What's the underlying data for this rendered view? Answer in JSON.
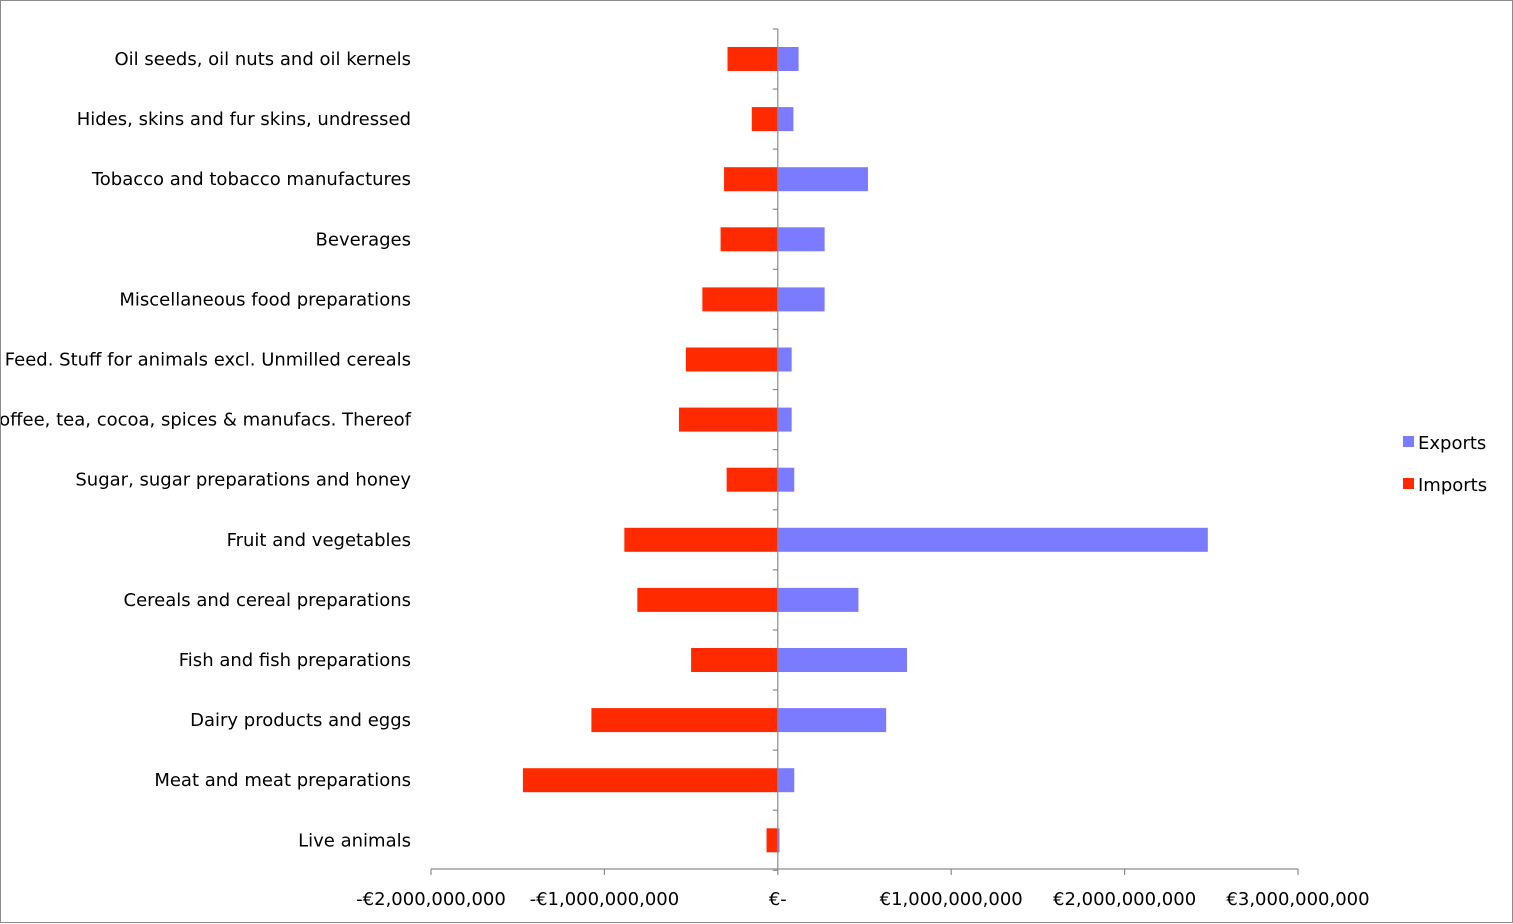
{
  "chart_data": {
    "type": "bar",
    "orientation": "horizontal",
    "categories": [
      "Live animals",
      "Meat and meat preparations",
      "Dairy products and eggs",
      "Fish and fish preparations",
      "Cereals and cereal preparations",
      "Fruit and vegetables",
      "Sugar, sugar preparations and honey",
      "Coffee, tea, cocoa, spices & manufacs. Thereof",
      "Feed. Stuff for animals excl. Unmilled cereals",
      "Miscellaneous food preparations",
      "Beverages",
      "Tobacco and tobacco manufactures",
      "Hides, skins and fur skins, undressed",
      "Oil seeds, oil nuts and oil kernels"
    ],
    "series": [
      {
        "name": "Exports",
        "color": "#7b7bff",
        "values": [
          10000000,
          95000000,
          625000000,
          745000000,
          465000000,
          2480000000,
          95000000,
          80000000,
          80000000,
          270000000,
          270000000,
          520000000,
          90000000,
          120000000
        ]
      },
      {
        "name": "Imports",
        "color": "#ff2a00",
        "values": [
          -65000000,
          -1470000000,
          -1075000000,
          -500000000,
          -810000000,
          -885000000,
          -295000000,
          -570000000,
          -530000000,
          -435000000,
          -330000000,
          -310000000,
          -150000000,
          -290000000
        ]
      }
    ],
    "xlim": [
      -2000000000,
      3000000000
    ],
    "xticks": [
      -2000000000,
      -1000000000,
      0,
      1000000000,
      2000000000,
      3000000000
    ],
    "xtick_labels": [
      "-€2,000,000,000",
      "-€1,000,000,000",
      "€-",
      "€1,000,000,000",
      "€2,000,000,000",
      "€3,000,000,000"
    ],
    "grid": false,
    "legend_position": "right"
  }
}
